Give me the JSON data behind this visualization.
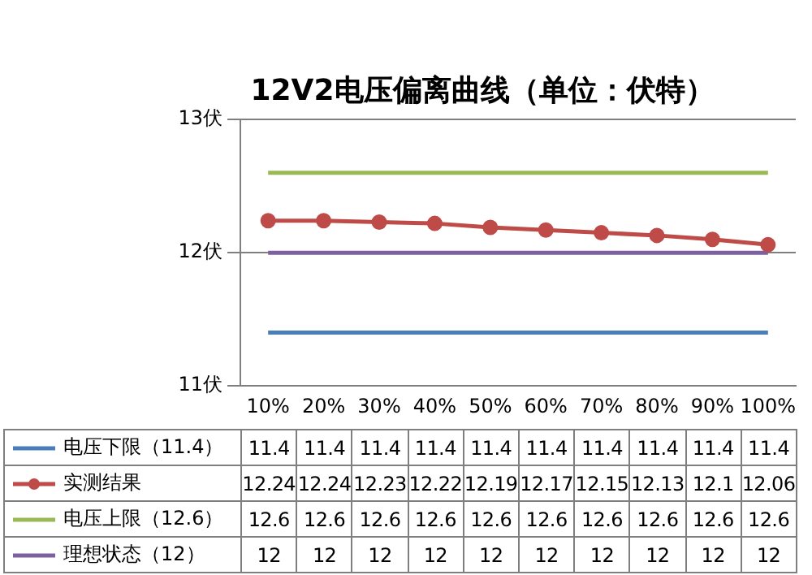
{
  "chart_data": {
    "type": "line",
    "title": "12V2电压偏离曲线（单位：伏特）",
    "categories": [
      "10%",
      "20%",
      "30%",
      "40%",
      "50%",
      "60%",
      "70%",
      "80%",
      "90%",
      "100%"
    ],
    "series": [
      {
        "name": "电压下限（11.4）",
        "color": "#4a7ebb",
        "marker": "none",
        "values": [
          11.4,
          11.4,
          11.4,
          11.4,
          11.4,
          11.4,
          11.4,
          11.4,
          11.4,
          11.4
        ]
      },
      {
        "name": "实测结果",
        "color": "#be4b48",
        "marker": "circle",
        "values": [
          12.24,
          12.24,
          12.23,
          12.22,
          12.19,
          12.17,
          12.15,
          12.13,
          12.1,
          12.06
        ]
      },
      {
        "name": "电压上限（12.6）",
        "color": "#98b954",
        "marker": "none",
        "values": [
          12.6,
          12.6,
          12.6,
          12.6,
          12.6,
          12.6,
          12.6,
          12.6,
          12.6,
          12.6
        ]
      },
      {
        "name": "理想状态（12）",
        "color": "#7d60a0",
        "marker": "none",
        "values": [
          12,
          12,
          12,
          12,
          12,
          12,
          12,
          12,
          12,
          12
        ]
      }
    ],
    "ylim": [
      11,
      13
    ],
    "yticks": [
      {
        "value": 11,
        "label": "11伏"
      },
      {
        "value": 12,
        "label": "12伏"
      },
      {
        "value": 13,
        "label": "13伏"
      }
    ],
    "grid": "y",
    "legend": "bottom",
    "data_labels": true
  }
}
